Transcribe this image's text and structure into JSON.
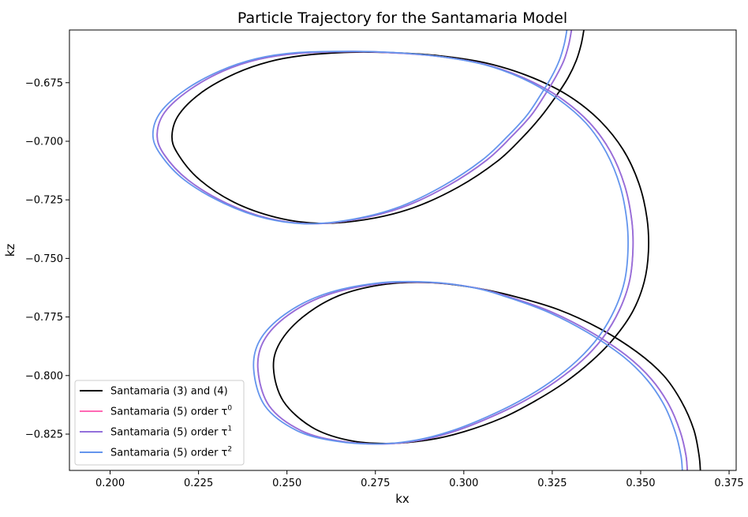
{
  "chart_data": {
    "type": "line",
    "title": "Particle Trajectory for the Santamaria Model",
    "xlabel": "kx",
    "ylabel": "kz",
    "xlim": [
      0.1885,
      0.377
    ],
    "ylim": [
      -0.8405,
      -0.6525
    ],
    "x_ticks": [
      "0.200",
      "0.225",
      "0.250",
      "0.275",
      "0.300",
      "0.325",
      "0.350",
      "0.375"
    ],
    "y_ticks": [
      "−0.675",
      "−0.700",
      "−0.725",
      "−0.750",
      "−0.775",
      "−0.800",
      "−0.825"
    ],
    "grid": false,
    "legend_position": "lower-left",
    "series": [
      {
        "name": "Santamaria (3) and (4)",
        "legend_prefix": "Santamaria (3) and (4)",
        "legend_sup": "",
        "color": "#000000",
        "points": [
          [
            0.334,
            -0.652
          ],
          [
            0.3332,
            -0.6585
          ],
          [
            0.3318,
            -0.6655
          ],
          [
            0.3295,
            -0.6728
          ],
          [
            0.3262,
            -0.6805
          ],
          [
            0.3218,
            -0.6895
          ],
          [
            0.3165,
            -0.6985
          ],
          [
            0.3095,
            -0.7085
          ],
          [
            0.2985,
            -0.7195
          ],
          [
            0.2855,
            -0.7285
          ],
          [
            0.272,
            -0.7335
          ],
          [
            0.259,
            -0.735
          ],
          [
            0.247,
            -0.7325
          ],
          [
            0.235,
            -0.726
          ],
          [
            0.225,
            -0.716
          ],
          [
            0.219,
            -0.705
          ],
          [
            0.2175,
            -0.6975
          ],
          [
            0.2195,
            -0.6885
          ],
          [
            0.226,
            -0.679
          ],
          [
            0.2355,
            -0.671
          ],
          [
            0.245,
            -0.666
          ],
          [
            0.255,
            -0.6633
          ],
          [
            0.268,
            -0.662
          ],
          [
            0.28,
            -0.6622
          ],
          [
            0.293,
            -0.6635
          ],
          [
            0.306,
            -0.6665
          ],
          [
            0.318,
            -0.672
          ],
          [
            0.329,
            -0.68
          ],
          [
            0.338,
            -0.6905
          ],
          [
            0.345,
            -0.7035
          ],
          [
            0.3495,
            -0.718
          ],
          [
            0.3518,
            -0.733
          ],
          [
            0.3522,
            -0.747
          ],
          [
            0.351,
            -0.76
          ],
          [
            0.3478,
            -0.7725
          ],
          [
            0.3425,
            -0.784
          ],
          [
            0.336,
            -0.794
          ],
          [
            0.3285,
            -0.803
          ],
          [
            0.32,
            -0.811
          ],
          [
            0.311,
            -0.818
          ],
          [
            0.3,
            -0.824
          ],
          [
            0.29,
            -0.8275
          ],
          [
            0.278,
            -0.829
          ],
          [
            0.267,
            -0.8275
          ],
          [
            0.257,
            -0.822
          ],
          [
            0.249,
            -0.811
          ],
          [
            0.2462,
            -0.797
          ],
          [
            0.248,
            -0.786
          ],
          [
            0.2545,
            -0.775
          ],
          [
            0.2645,
            -0.766
          ],
          [
            0.277,
            -0.7612
          ],
          [
            0.29,
            -0.7603
          ],
          [
            0.303,
            -0.7625
          ],
          [
            0.315,
            -0.7665
          ],
          [
            0.327,
            -0.772
          ],
          [
            0.3385,
            -0.78
          ],
          [
            0.349,
            -0.79
          ],
          [
            0.3565,
            -0.8
          ],
          [
            0.3615,
            -0.811
          ],
          [
            0.365,
            -0.823
          ],
          [
            0.3665,
            -0.834
          ],
          [
            0.3669,
            -0.841
          ]
        ]
      },
      {
        "name": "Santamaria (5) order τ^0",
        "legend_prefix": "Santamaria (5) order τ",
        "legend_sup": "0",
        "color": "#ff69b4",
        "points": [
          [
            0.3305,
            -0.652
          ],
          [
            0.3297,
            -0.6585
          ],
          [
            0.3283,
            -0.6655
          ],
          [
            0.326,
            -0.6725
          ],
          [
            0.323,
            -0.68
          ],
          [
            0.319,
            -0.689
          ],
          [
            0.3135,
            -0.698
          ],
          [
            0.3065,
            -0.708
          ],
          [
            0.2955,
            -0.719
          ],
          [
            0.283,
            -0.728
          ],
          [
            0.27,
            -0.7332
          ],
          [
            0.257,
            -0.7352
          ],
          [
            0.245,
            -0.733
          ],
          [
            0.233,
            -0.7265
          ],
          [
            0.222,
            -0.7165
          ],
          [
            0.2152,
            -0.7055
          ],
          [
            0.2133,
            -0.697
          ],
          [
            0.2155,
            -0.6875
          ],
          [
            0.2225,
            -0.678
          ],
          [
            0.232,
            -0.67
          ],
          [
            0.242,
            -0.665
          ],
          [
            0.253,
            -0.6625
          ],
          [
            0.268,
            -0.6617
          ],
          [
            0.28,
            -0.6622
          ],
          [
            0.293,
            -0.6638
          ],
          [
            0.306,
            -0.6672
          ],
          [
            0.317,
            -0.673
          ],
          [
            0.327,
            -0.6812
          ],
          [
            0.3355,
            -0.692
          ],
          [
            0.3415,
            -0.7045
          ],
          [
            0.3455,
            -0.719
          ],
          [
            0.3475,
            -0.734
          ],
          [
            0.3478,
            -0.747
          ],
          [
            0.3468,
            -0.76
          ],
          [
            0.344,
            -0.772
          ],
          [
            0.3395,
            -0.7835
          ],
          [
            0.3335,
            -0.7935
          ],
          [
            0.326,
            -0.8025
          ],
          [
            0.3175,
            -0.8105
          ],
          [
            0.308,
            -0.8175
          ],
          [
            0.298,
            -0.8235
          ],
          [
            0.288,
            -0.8275
          ],
          [
            0.277,
            -0.8292
          ],
          [
            0.265,
            -0.828
          ],
          [
            0.254,
            -0.8235
          ],
          [
            0.245,
            -0.813
          ],
          [
            0.2418,
            -0.7975
          ],
          [
            0.2435,
            -0.785
          ],
          [
            0.2505,
            -0.774
          ],
          [
            0.2615,
            -0.7655
          ],
          [
            0.276,
            -0.7608
          ],
          [
            0.29,
            -0.7602
          ],
          [
            0.303,
            -0.7625
          ],
          [
            0.314,
            -0.767
          ],
          [
            0.325,
            -0.773
          ],
          [
            0.336,
            -0.7815
          ],
          [
            0.346,
            -0.7915
          ],
          [
            0.353,
            -0.8015
          ],
          [
            0.358,
            -0.8125
          ],
          [
            0.3612,
            -0.824
          ],
          [
            0.3628,
            -0.834
          ],
          [
            0.3632,
            -0.841
          ]
        ]
      },
      {
        "name": "Santamaria (5) order τ^1",
        "legend_prefix": "Santamaria (5) order τ",
        "legend_sup": "1",
        "color": "#9370db",
        "points": [
          [
            0.3305,
            -0.652
          ],
          [
            0.3297,
            -0.6585
          ],
          [
            0.3283,
            -0.6655
          ],
          [
            0.326,
            -0.6725
          ],
          [
            0.323,
            -0.68
          ],
          [
            0.319,
            -0.689
          ],
          [
            0.3135,
            -0.698
          ],
          [
            0.3065,
            -0.708
          ],
          [
            0.2955,
            -0.719
          ],
          [
            0.283,
            -0.728
          ],
          [
            0.27,
            -0.7332
          ],
          [
            0.257,
            -0.7352
          ],
          [
            0.245,
            -0.733
          ],
          [
            0.233,
            -0.7265
          ],
          [
            0.222,
            -0.7165
          ],
          [
            0.2152,
            -0.7055
          ],
          [
            0.2133,
            -0.697
          ],
          [
            0.2155,
            -0.6875
          ],
          [
            0.2225,
            -0.678
          ],
          [
            0.232,
            -0.67
          ],
          [
            0.242,
            -0.665
          ],
          [
            0.253,
            -0.6625
          ],
          [
            0.268,
            -0.6617
          ],
          [
            0.28,
            -0.6622
          ],
          [
            0.293,
            -0.6638
          ],
          [
            0.306,
            -0.6672
          ],
          [
            0.317,
            -0.673
          ],
          [
            0.327,
            -0.6812
          ],
          [
            0.3355,
            -0.692
          ],
          [
            0.3415,
            -0.7045
          ],
          [
            0.3455,
            -0.719
          ],
          [
            0.3475,
            -0.734
          ],
          [
            0.3478,
            -0.747
          ],
          [
            0.3468,
            -0.76
          ],
          [
            0.344,
            -0.772
          ],
          [
            0.3395,
            -0.7835
          ],
          [
            0.3335,
            -0.7935
          ],
          [
            0.326,
            -0.8025
          ],
          [
            0.3175,
            -0.8105
          ],
          [
            0.308,
            -0.8175
          ],
          [
            0.298,
            -0.8235
          ],
          [
            0.288,
            -0.8275
          ],
          [
            0.277,
            -0.8292
          ],
          [
            0.265,
            -0.828
          ],
          [
            0.254,
            -0.8235
          ],
          [
            0.245,
            -0.813
          ],
          [
            0.2418,
            -0.7975
          ],
          [
            0.2435,
            -0.785
          ],
          [
            0.2505,
            -0.774
          ],
          [
            0.2615,
            -0.7655
          ],
          [
            0.276,
            -0.7608
          ],
          [
            0.29,
            -0.7602
          ],
          [
            0.303,
            -0.7625
          ],
          [
            0.314,
            -0.767
          ],
          [
            0.325,
            -0.773
          ],
          [
            0.336,
            -0.7815
          ],
          [
            0.346,
            -0.7915
          ],
          [
            0.353,
            -0.8015
          ],
          [
            0.358,
            -0.8125
          ],
          [
            0.3612,
            -0.824
          ],
          [
            0.3628,
            -0.834
          ],
          [
            0.3632,
            -0.841
          ]
        ]
      },
      {
        "name": "Santamaria (5) order τ^2",
        "legend_prefix": "Santamaria (5) order τ",
        "legend_sup": "2",
        "color": "#6495ed",
        "points": [
          [
            0.3292,
            -0.652
          ],
          [
            0.3284,
            -0.6585
          ],
          [
            0.327,
            -0.6655
          ],
          [
            0.3248,
            -0.6725
          ],
          [
            0.3218,
            -0.68
          ],
          [
            0.3178,
            -0.689
          ],
          [
            0.3123,
            -0.698
          ],
          [
            0.3052,
            -0.708
          ],
          [
            0.2942,
            -0.719
          ],
          [
            0.2818,
            -0.728
          ],
          [
            0.269,
            -0.7332
          ],
          [
            0.2562,
            -0.7352
          ],
          [
            0.2442,
            -0.733
          ],
          [
            0.2322,
            -0.7265
          ],
          [
            0.221,
            -0.7165
          ],
          [
            0.2142,
            -0.7055
          ],
          [
            0.2121,
            -0.697
          ],
          [
            0.2143,
            -0.6875
          ],
          [
            0.2213,
            -0.678
          ],
          [
            0.231,
            -0.67
          ],
          [
            0.2412,
            -0.6648
          ],
          [
            0.2525,
            -0.6622
          ],
          [
            0.268,
            -0.6616
          ],
          [
            0.28,
            -0.6621
          ],
          [
            0.293,
            -0.6638
          ],
          [
            0.3058,
            -0.6673
          ],
          [
            0.3166,
            -0.6732
          ],
          [
            0.3262,
            -0.6815
          ],
          [
            0.3345,
            -0.6922
          ],
          [
            0.3403,
            -0.7048
          ],
          [
            0.3442,
            -0.7192
          ],
          [
            0.3461,
            -0.734
          ],
          [
            0.3464,
            -0.747
          ],
          [
            0.3454,
            -0.76
          ],
          [
            0.3426,
            -0.772
          ],
          [
            0.3381,
            -0.7835
          ],
          [
            0.3321,
            -0.7935
          ],
          [
            0.3247,
            -0.8025
          ],
          [
            0.3162,
            -0.8105
          ],
          [
            0.3068,
            -0.8175
          ],
          [
            0.2968,
            -0.8235
          ],
          [
            0.2868,
            -0.8275
          ],
          [
            0.2758,
            -0.8292
          ],
          [
            0.2638,
            -0.828
          ],
          [
            0.2528,
            -0.8235
          ],
          [
            0.2438,
            -0.813
          ],
          [
            0.2406,
            -0.7975
          ],
          [
            0.2423,
            -0.785
          ],
          [
            0.2493,
            -0.774
          ],
          [
            0.2605,
            -0.7653
          ],
          [
            0.2752,
            -0.7606
          ],
          [
            0.29,
            -0.7601
          ],
          [
            0.3028,
            -0.7625
          ],
          [
            0.3136,
            -0.7672
          ],
          [
            0.3244,
            -0.7733
          ],
          [
            0.3352,
            -0.7818
          ],
          [
            0.345,
            -0.7918
          ],
          [
            0.3518,
            -0.8018
          ],
          [
            0.3567,
            -0.8128
          ],
          [
            0.3598,
            -0.8243
          ],
          [
            0.3614,
            -0.8343
          ],
          [
            0.3618,
            -0.841
          ]
        ]
      }
    ]
  }
}
